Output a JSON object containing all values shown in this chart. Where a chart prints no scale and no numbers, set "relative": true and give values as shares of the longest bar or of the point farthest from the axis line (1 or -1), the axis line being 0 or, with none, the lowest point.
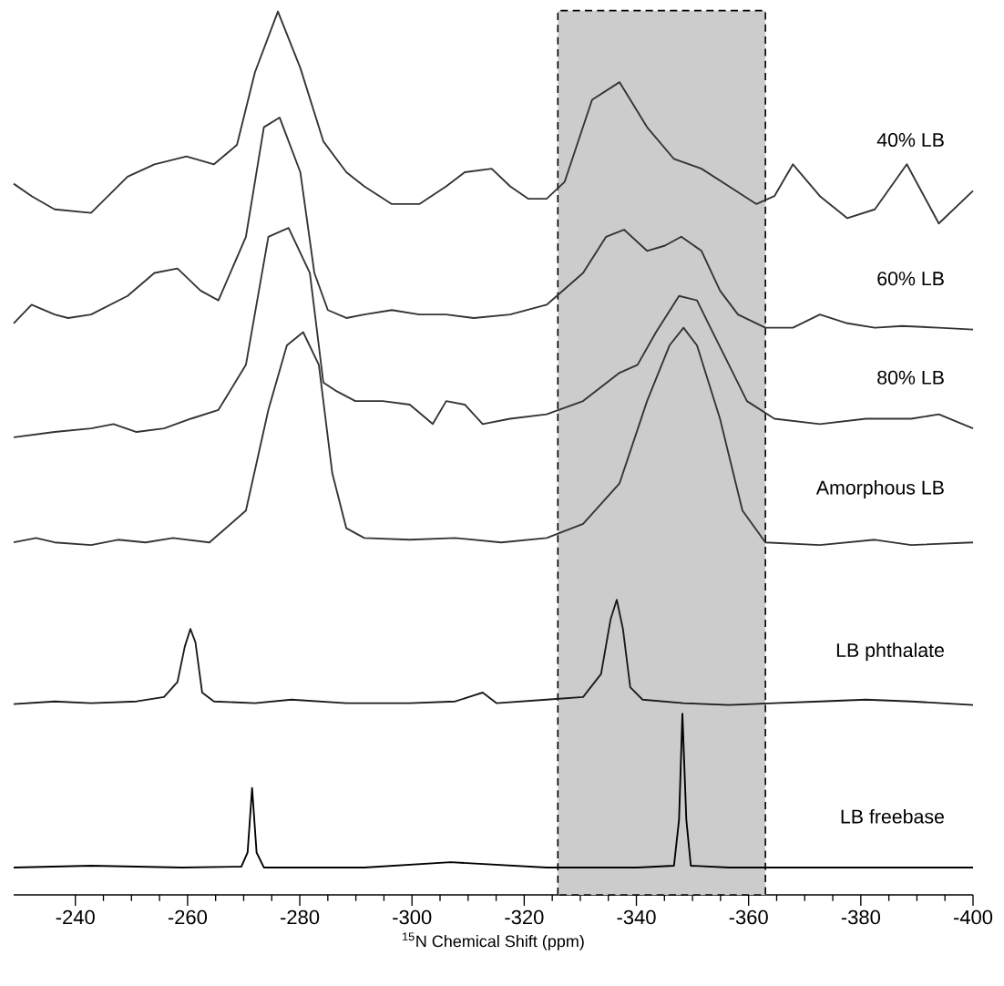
{
  "chart_data": {
    "type": "line",
    "relative": true,
    "xlabel": "$^{15}$N Chemical Shift (ppm)",
    "xlim": [
      -229,
      -400
    ],
    "xticks": [
      -240,
      -260,
      -280,
      -300,
      -320,
      -340,
      -360,
      -380,
      -400
    ],
    "bands": [
      {
        "axis": "x",
        "from": -326,
        "to": -363,
        "color": "#cccccc"
      }
    ],
    "series": [
      {
        "name": "40% LB",
        "color": "#333333",
        "x": [
          -229,
          -232.2,
          -236.3,
          -242.8,
          -249.3,
          -254.1,
          -259.8,
          -264.7,
          -268.8,
          -272,
          -276.1,
          -280.1,
          -284.2,
          -288.3,
          -291.5,
          -296.4,
          -301.3,
          -306.1,
          -309.4,
          -314.2,
          -317.5,
          -320.7,
          -324,
          -327.2,
          -332.1,
          -337,
          -341.9,
          -346.7,
          -351.6,
          -356.5,
          -361.4,
          -364.6,
          -367.9,
          -372.7,
          -377.6,
          -382.5,
          -388.2,
          -393.9,
          -400
        ],
        "values": [
          0.805,
          0.791,
          0.776,
          0.772,
          0.813,
          0.827,
          0.836,
          0.827,
          0.849,
          0.931,
          1,
          0.936,
          0.853,
          0.818,
          0.802,
          0.782,
          0.782,
          0.802,
          0.818,
          0.822,
          0.802,
          0.788,
          0.788,
          0.807,
          0.9,
          0.92,
          0.869,
          0.833,
          0.822,
          0.802,
          0.782,
          0.791,
          0.827,
          0.791,
          0.766,
          0.776,
          0.827,
          0.76,
          0.797
        ]
      },
      {
        "name": "60% LB",
        "color": "#333333",
        "x": [
          -229,
          -232.2,
          -236.3,
          -238.7,
          -242.8,
          -249.3,
          -254.1,
          -258.2,
          -262.3,
          -265.5,
          -270.4,
          -273.6,
          -276.4,
          -280.1,
          -282.6,
          -285,
          -288.3,
          -291.5,
          -296.4,
          -301.3,
          -306.1,
          -311,
          -317.5,
          -324,
          -330.5,
          -334.6,
          -337.8,
          -341.9,
          -345.1,
          -348,
          -351.6,
          -354.9,
          -358.1,
          -363,
          -367.9,
          -372.7,
          -377.6,
          -382.5,
          -387.4,
          -393.9,
          -400
        ],
        "values": [
          0.647,
          0.668,
          0.657,
          0.653,
          0.657,
          0.678,
          0.704,
          0.709,
          0.684,
          0.673,
          0.745,
          0.869,
          0.88,
          0.818,
          0.704,
          0.662,
          0.653,
          0.657,
          0.662,
          0.657,
          0.657,
          0.653,
          0.657,
          0.668,
          0.704,
          0.745,
          0.753,
          0.729,
          0.735,
          0.745,
          0.729,
          0.684,
          0.657,
          0.642,
          0.642,
          0.657,
          0.647,
          0.642,
          0.644,
          0.642,
          0.64
        ]
      },
      {
        "name": "80% LB",
        "color": "#333333",
        "x": [
          -229,
          -236.3,
          -242.8,
          -246.8,
          -250.9,
          -255.8,
          -260.6,
          -265.5,
          -270.4,
          -274.4,
          -278,
          -281.8,
          -284.2,
          -286.6,
          -289.9,
          -294.8,
          -299.6,
          -303.7,
          -306.1,
          -309.4,
          -312.6,
          -317.5,
          -324,
          -330.5,
          -337,
          -340.2,
          -343.5,
          -347.6,
          -350.8,
          -353.2,
          -356.5,
          -359.7,
          -364.6,
          -372.7,
          -380.9,
          -389,
          -393.9,
          -400
        ],
        "values": [
          0.518,
          0.524,
          0.528,
          0.533,
          0.524,
          0.528,
          0.539,
          0.549,
          0.6,
          0.745,
          0.755,
          0.704,
          0.58,
          0.57,
          0.559,
          0.559,
          0.555,
          0.533,
          0.559,
          0.555,
          0.533,
          0.539,
          0.544,
          0.559,
          0.591,
          0.6,
          0.637,
          0.678,
          0.673,
          0.642,
          0.6,
          0.559,
          0.539,
          0.533,
          0.539,
          0.539,
          0.544,
          0.528
        ]
      },
      {
        "name": "Amorphous LB",
        "color": "#333333",
        "x": [
          -229,
          -233,
          -236.3,
          -242.8,
          -247.6,
          -252.5,
          -257.4,
          -263.9,
          -270.4,
          -274.4,
          -277.7,
          -280.6,
          -283.4,
          -285.8,
          -288.3,
          -291.5,
          -299.6,
          -307.7,
          -315.9,
          -324,
          -330.5,
          -337,
          -341.9,
          -345.9,
          -348.4,
          -350.8,
          -354.9,
          -358.9,
          -363,
          -372.7,
          -382.5,
          -389,
          -400
        ],
        "values": [
          0.399,
          0.404,
          0.399,
          0.396,
          0.402,
          0.399,
          0.404,
          0.399,
          0.435,
          0.549,
          0.622,
          0.637,
          0.6,
          0.477,
          0.415,
          0.404,
          0.402,
          0.404,
          0.399,
          0.404,
          0.42,
          0.466,
          0.559,
          0.622,
          0.642,
          0.622,
          0.539,
          0.435,
          0.399,
          0.396,
          0.402,
          0.396,
          0.399
        ]
      },
      {
        "name": "LB phthalate",
        "color": "#1a1a1a",
        "x": [
          -229,
          -236.3,
          -242.8,
          -250.9,
          -255.8,
          -258.2,
          -259.5,
          -260.5,
          -261.4,
          -262.6,
          -264.7,
          -272,
          -278.5,
          -288.3,
          -299.6,
          -307.7,
          -312.6,
          -315.1,
          -324,
          -330.5,
          -333.7,
          -335.4,
          -336.5,
          -337.6,
          -338.9,
          -341.1,
          -348.4,
          -356.5,
          -364.6,
          -372.7,
          -380.9,
          -389,
          -400
        ],
        "values": [
          0.216,
          0.219,
          0.217,
          0.219,
          0.224,
          0.241,
          0.281,
          0.301,
          0.286,
          0.229,
          0.219,
          0.217,
          0.221,
          0.217,
          0.217,
          0.219,
          0.229,
          0.217,
          0.221,
          0.224,
          0.25,
          0.312,
          0.334,
          0.301,
          0.235,
          0.221,
          0.217,
          0.215,
          0.217,
          0.219,
          0.221,
          0.219,
          0.215
        ]
      },
      {
        "name": "LB freebase",
        "color": "#000000",
        "x": [
          -229,
          -242.8,
          -259,
          -269.6,
          -270.7,
          -271.5,
          -272.3,
          -273.6,
          -291.5,
          -306.9,
          -324,
          -340.2,
          -346.7,
          -347.6,
          -348.2,
          -348.9,
          -349.7,
          -356.5,
          -372.7,
          -389,
          -400
        ],
        "values": [
          0.031,
          0.033,
          0.031,
          0.032,
          0.048,
          0.121,
          0.048,
          0.031,
          0.031,
          0.037,
          0.031,
          0.031,
          0.033,
          0.085,
          0.205,
          0.085,
          0.033,
          0.031,
          0.031,
          0.031,
          0.031
        ]
      }
    ]
  }
}
